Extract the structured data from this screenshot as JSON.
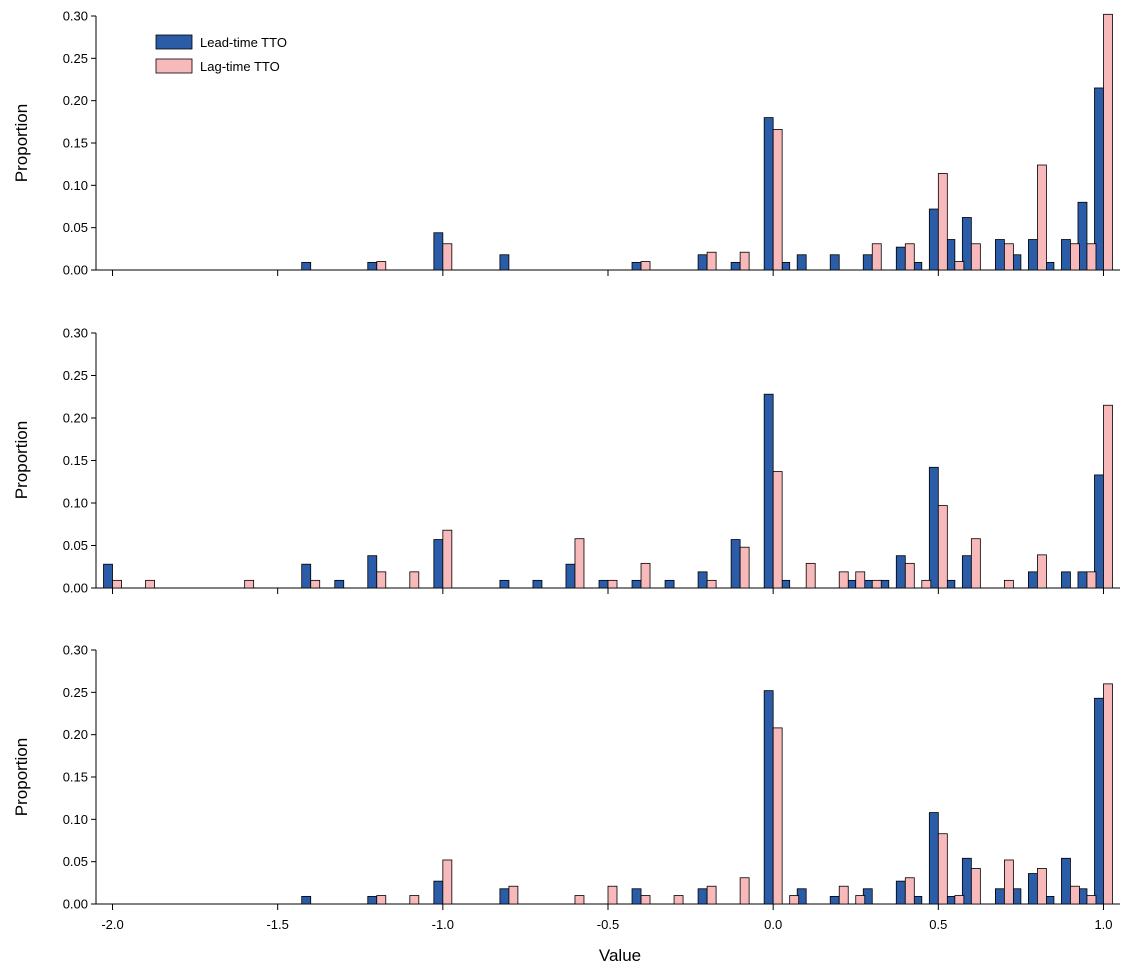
{
  "chart_data": [
    {
      "type": "bar",
      "ylabel": "Proportion",
      "xlim": [
        -2.05,
        1.05
      ],
      "ylim": [
        0,
        0.3
      ],
      "yticks": [
        "0.00",
        "0.05",
        "0.10",
        "0.15",
        "0.20",
        "0.25",
        "0.30"
      ],
      "legend": {
        "placement": "top-left",
        "entries": [
          "Lead-time TTO",
          "Lag-time TTO"
        ]
      },
      "series": [
        {
          "name": "Lead-time TTO",
          "color": "#2b5ca8",
          "points": [
            [
              -1.4,
              0.009
            ],
            [
              -1.2,
              0.009
            ],
            [
              -1.0,
              0.044
            ],
            [
              -0.8,
              0.018
            ],
            [
              -0.4,
              0.009
            ],
            [
              -0.2,
              0.018
            ],
            [
              -0.1,
              0.009
            ],
            [
              0.0,
              0.18
            ],
            [
              0.05,
              0.009
            ],
            [
              0.1,
              0.018
            ],
            [
              0.2,
              0.018
            ],
            [
              0.3,
              0.018
            ],
            [
              0.4,
              0.027
            ],
            [
              0.45,
              0.009
            ],
            [
              0.5,
              0.072
            ],
            [
              0.55,
              0.036
            ],
            [
              0.6,
              0.062
            ],
            [
              0.7,
              0.036
            ],
            [
              0.75,
              0.018
            ],
            [
              0.8,
              0.036
            ],
            [
              0.85,
              0.009
            ],
            [
              0.9,
              0.036
            ],
            [
              0.95,
              0.08
            ],
            [
              1.0,
              0.215
            ]
          ]
        },
        {
          "name": "Lag-time TTO",
          "color": "#f8b9bb",
          "points": [
            [
              -1.2,
              0.01
            ],
            [
              -1.0,
              0.031
            ],
            [
              -0.4,
              0.01
            ],
            [
              -0.2,
              0.021
            ],
            [
              -0.1,
              0.021
            ],
            [
              0.0,
              0.166
            ],
            [
              0.3,
              0.031
            ],
            [
              0.4,
              0.031
            ],
            [
              0.5,
              0.114
            ],
            [
              0.55,
              0.01
            ],
            [
              0.6,
              0.031
            ],
            [
              0.7,
              0.031
            ],
            [
              0.8,
              0.124
            ],
            [
              0.9,
              0.031
            ],
            [
              0.95,
              0.031
            ],
            [
              1.0,
              0.302
            ]
          ]
        }
      ]
    },
    {
      "type": "bar",
      "ylabel": "Proportion",
      "xlim": [
        -2.05,
        1.05
      ],
      "ylim": [
        0,
        0.3
      ],
      "yticks": [
        "0.00",
        "0.05",
        "0.10",
        "0.15",
        "0.20",
        "0.25",
        "0.30"
      ],
      "series": [
        {
          "name": "Lead-time TTO",
          "color": "#2b5ca8",
          "points": [
            [
              -2.0,
              0.028
            ],
            [
              -1.4,
              0.028
            ],
            [
              -1.3,
              0.009
            ],
            [
              -1.2,
              0.038
            ],
            [
              -1.0,
              0.057
            ],
            [
              -0.8,
              0.009
            ],
            [
              -0.7,
              0.009
            ],
            [
              -0.6,
              0.028
            ],
            [
              -0.5,
              0.009
            ],
            [
              -0.4,
              0.009
            ],
            [
              -0.3,
              0.009
            ],
            [
              -0.2,
              0.019
            ],
            [
              -0.1,
              0.057
            ],
            [
              0.0,
              0.228
            ],
            [
              0.05,
              0.009
            ],
            [
              0.25,
              0.009
            ],
            [
              0.3,
              0.009
            ],
            [
              0.35,
              0.009
            ],
            [
              0.4,
              0.038
            ],
            [
              0.5,
              0.142
            ],
            [
              0.55,
              0.009
            ],
            [
              0.6,
              0.038
            ],
            [
              0.8,
              0.019
            ],
            [
              0.9,
              0.019
            ],
            [
              0.95,
              0.019
            ],
            [
              1.0,
              0.133
            ]
          ]
        },
        {
          "name": "Lag-time TTO",
          "color": "#f8b9bb",
          "points": [
            [
              -2.0,
              0.009
            ],
            [
              -1.9,
              0.009
            ],
            [
              -1.6,
              0.009
            ],
            [
              -1.4,
              0.009
            ],
            [
              -1.2,
              0.019
            ],
            [
              -1.1,
              0.019
            ],
            [
              -1.0,
              0.068
            ],
            [
              -0.6,
              0.058
            ],
            [
              -0.5,
              0.009
            ],
            [
              -0.4,
              0.029
            ],
            [
              -0.2,
              0.009
            ],
            [
              -0.1,
              0.048
            ],
            [
              0.0,
              0.137
            ],
            [
              0.1,
              0.029
            ],
            [
              0.2,
              0.019
            ],
            [
              0.25,
              0.019
            ],
            [
              0.3,
              0.009
            ],
            [
              0.4,
              0.029
            ],
            [
              0.45,
              0.009
            ],
            [
              0.5,
              0.097
            ],
            [
              0.6,
              0.058
            ],
            [
              0.7,
              0.009
            ],
            [
              0.8,
              0.039
            ],
            [
              0.95,
              0.019
            ],
            [
              1.0,
              0.215
            ]
          ]
        }
      ]
    },
    {
      "type": "bar",
      "ylabel": "Proportion",
      "xlabel": "Value",
      "xlim": [
        -2.05,
        1.05
      ],
      "ylim": [
        0,
        0.3
      ],
      "yticks": [
        "0.00",
        "0.05",
        "0.10",
        "0.15",
        "0.20",
        "0.25",
        "0.30"
      ],
      "xticks": [
        {
          "value": -2.0,
          "label": "-2.0"
        },
        {
          "value": -1.5,
          "label": "-1.5"
        },
        {
          "value": -1.0,
          "label": "-1.0"
        },
        {
          "value": -0.5,
          "label": "-0.5"
        },
        {
          "value": 0.0,
          "label": "0.0"
        },
        {
          "value": 0.5,
          "label": "0.5"
        },
        {
          "value": 1.0,
          "label": "1.0"
        }
      ],
      "series": [
        {
          "name": "Lead-time TTO",
          "color": "#2b5ca8",
          "points": [
            [
              -1.4,
              0.009
            ],
            [
              -1.2,
              0.009
            ],
            [
              -1.0,
              0.027
            ],
            [
              -0.8,
              0.018
            ],
            [
              -0.4,
              0.018
            ],
            [
              -0.2,
              0.018
            ],
            [
              0.0,
              0.252
            ],
            [
              0.1,
              0.018
            ],
            [
              0.2,
              0.009
            ],
            [
              0.3,
              0.018
            ],
            [
              0.4,
              0.027
            ],
            [
              0.45,
              0.009
            ],
            [
              0.5,
              0.108
            ],
            [
              0.55,
              0.009
            ],
            [
              0.6,
              0.054
            ],
            [
              0.7,
              0.018
            ],
            [
              0.75,
              0.018
            ],
            [
              0.8,
              0.036
            ],
            [
              0.85,
              0.009
            ],
            [
              0.9,
              0.054
            ],
            [
              0.95,
              0.018
            ],
            [
              1.0,
              0.243
            ]
          ]
        },
        {
          "name": "Lag-time TTO",
          "color": "#f8b9bb",
          "points": [
            [
              -1.2,
              0.01
            ],
            [
              -1.1,
              0.01
            ],
            [
              -1.0,
              0.052
            ],
            [
              -0.8,
              0.021
            ],
            [
              -0.6,
              0.01
            ],
            [
              -0.5,
              0.021
            ],
            [
              -0.4,
              0.01
            ],
            [
              -0.3,
              0.01
            ],
            [
              -0.2,
              0.021
            ],
            [
              -0.1,
              0.031
            ],
            [
              0.0,
              0.208
            ],
            [
              0.05,
              0.01
            ],
            [
              0.2,
              0.021
            ],
            [
              0.25,
              0.01
            ],
            [
              0.4,
              0.031
            ],
            [
              0.5,
              0.083
            ],
            [
              0.55,
              0.01
            ],
            [
              0.6,
              0.042
            ],
            [
              0.7,
              0.052
            ],
            [
              0.8,
              0.042
            ],
            [
              0.9,
              0.021
            ],
            [
              0.95,
              0.01
            ],
            [
              1.0,
              0.26
            ]
          ]
        }
      ]
    }
  ]
}
